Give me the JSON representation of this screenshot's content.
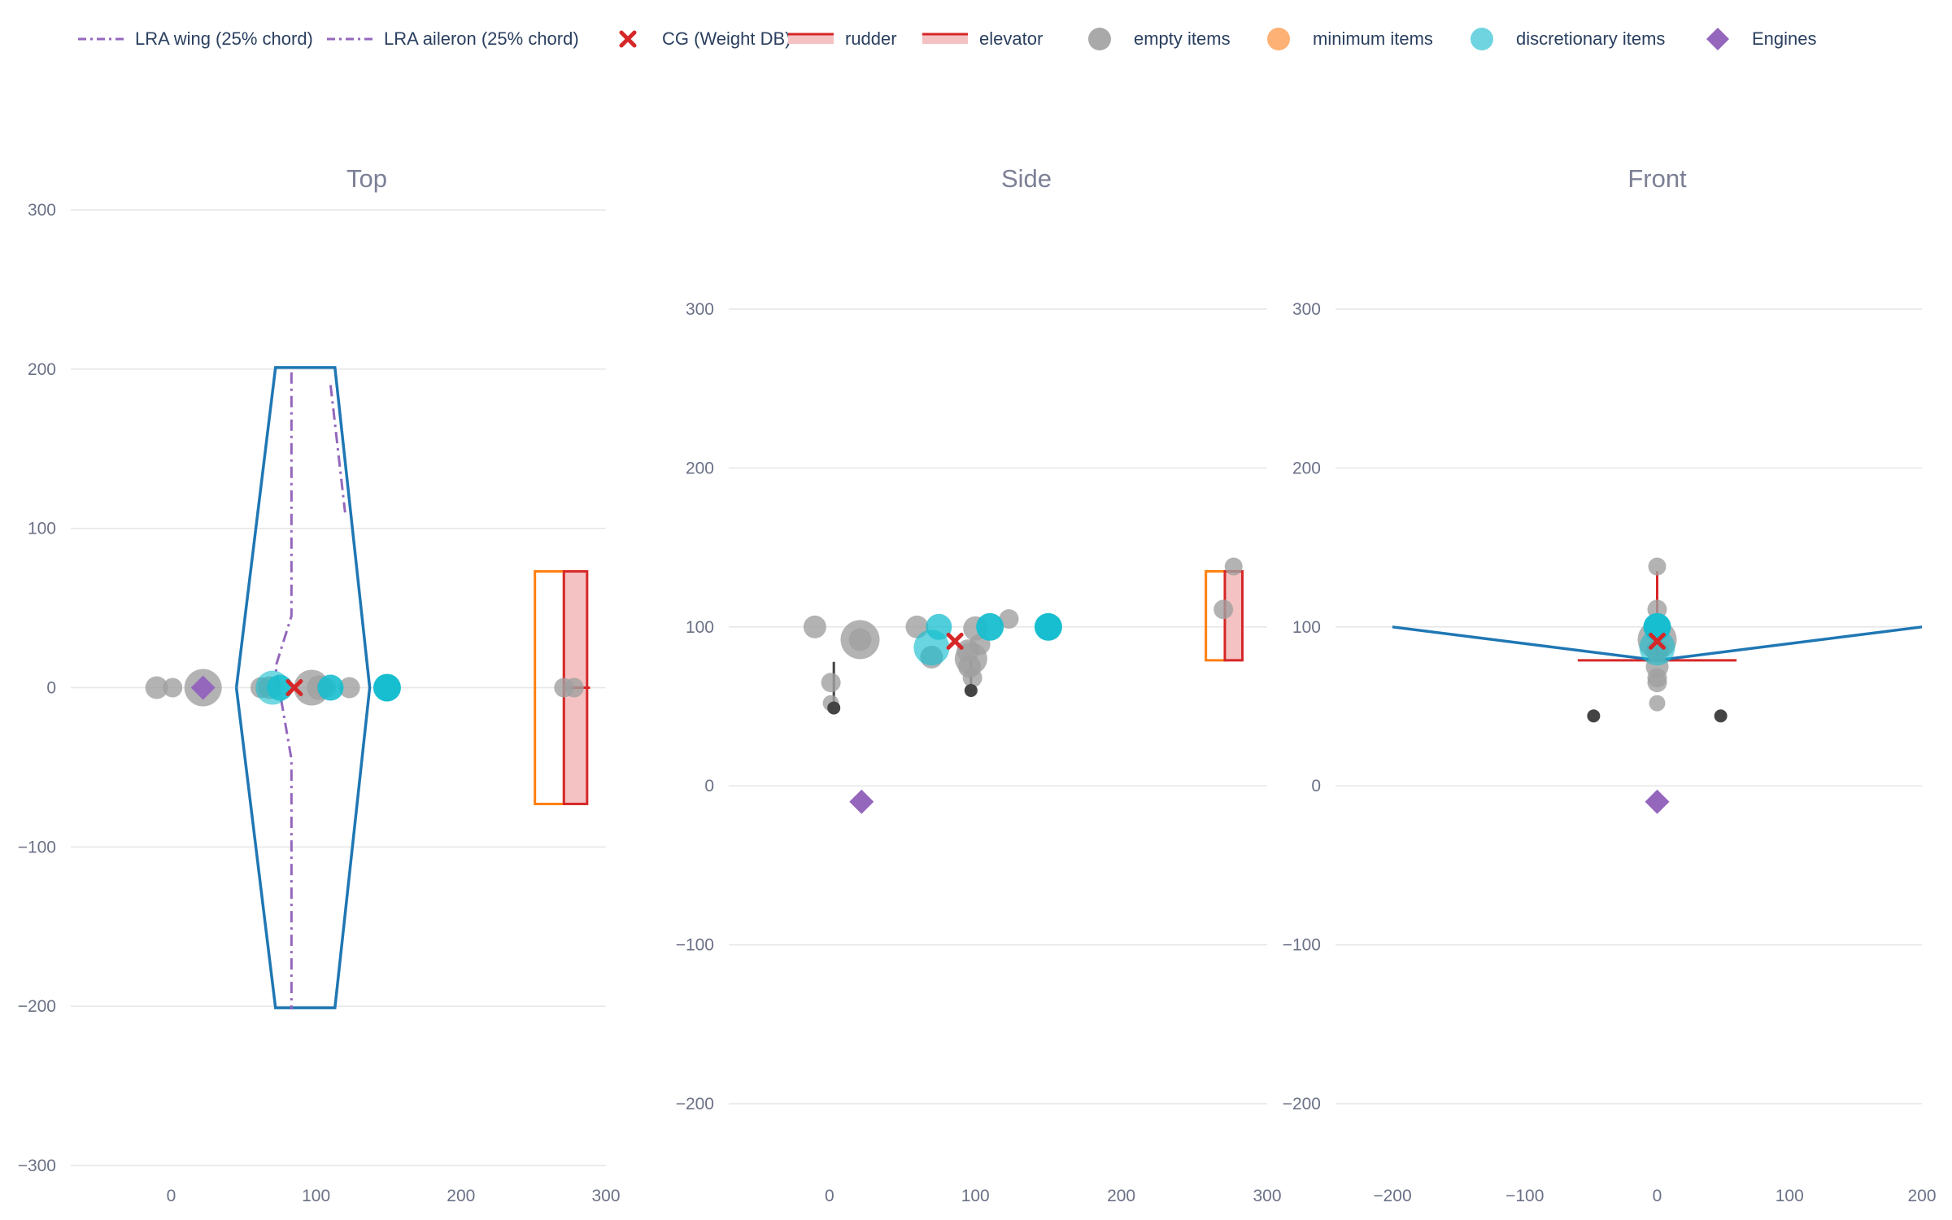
{
  "legend": [
    {
      "label": "LRA wing (25% chord)",
      "kind": "dashdot",
      "color": "#9467bd"
    },
    {
      "label": "LRA aileron (25% chord)",
      "kind": "dashdot",
      "color": "#9467bd"
    },
    {
      "label": "CG (Weight DB)",
      "kind": "x",
      "color": "#d62728"
    },
    {
      "label": "rudder",
      "kind": "band",
      "color": "#d62728"
    },
    {
      "label": "elevator",
      "kind": "band",
      "color": "#d62728"
    },
    {
      "label": "empty items",
      "kind": "dot",
      "color": "#a9a9a9"
    },
    {
      "label": "minimum items",
      "kind": "dot",
      "color": "#fdb174"
    },
    {
      "label": "discretionary items",
      "kind": "dot",
      "color": "#6fd4e0"
    },
    {
      "label": "Engines",
      "kind": "diamond",
      "color": "#9467bd"
    }
  ],
  "colors": {
    "outline": "#1f77b4",
    "lra": "#9467bd",
    "cg": "#d62728",
    "surface": "#d62728",
    "surface_fill": "#f4c2c2",
    "minimum_outline": "#ff7f0e",
    "empty": "#a0a0a0",
    "empty_dark": "#444444",
    "discretionary": "#17becf",
    "engine": "#9467bd",
    "grid": "#e6e6e6"
  },
  "chart_data": [
    {
      "type": "scatter",
      "title": "Top",
      "xlim": [
        -30,
        300
      ],
      "ylim": [
        -300,
        300
      ],
      "xticks": [
        0,
        100,
        200,
        300
      ],
      "yticks": [
        -300,
        -200,
        -100,
        0,
        100,
        200,
        300
      ],
      "fuselage_outline": [
        [
          45,
          0
        ],
        [
          72,
          201
        ],
        [
          113,
          201
        ],
        [
          137,
          0
        ],
        [
          113,
          -201
        ],
        [
          72,
          -201
        ],
        [
          45,
          0
        ]
      ],
      "lra_wing": [
        [
          83,
          198
        ],
        [
          83,
          45
        ],
        [
          72,
          13
        ],
        [
          83,
          -45
        ],
        [
          83,
          -202
        ]
      ],
      "lra_aileron": [
        [
          110,
          190
        ],
        [
          120,
          110
        ]
      ],
      "rudder": {
        "x": [
          271,
          289
        ],
        "y": [
          0,
          0
        ]
      },
      "elevator": {
        "x": [
          271,
          287
        ],
        "y": [
          -73,
          73
        ]
      },
      "minimum_outline": {
        "x": [
          251,
          271
        ],
        "y": [
          -73,
          73
        ]
      },
      "cg": [
        {
          "x": 85,
          "y": 0
        }
      ],
      "engines": [
        {
          "x": 22,
          "y": 0
        }
      ],
      "empty_items": [
        {
          "x": -10,
          "y": 0,
          "s": 14
        },
        {
          "x": 1,
          "y": 0,
          "s": 12
        },
        {
          "x": 22,
          "y": 0,
          "s": 23
        },
        {
          "x": 62,
          "y": 0,
          "s": 13
        },
        {
          "x": 68,
          "y": 0,
          "s": 14
        },
        {
          "x": 97,
          "y": 0,
          "s": 22
        },
        {
          "x": 102,
          "y": 0,
          "s": 15
        },
        {
          "x": 107,
          "y": 0,
          "s": 12
        },
        {
          "x": 123,
          "y": 0,
          "s": 13
        },
        {
          "x": 271,
          "y": 0,
          "s": 12
        },
        {
          "x": 278,
          "y": 0,
          "s": 12
        }
      ],
      "minimum_items": [],
      "discretionary_items": [
        {
          "x": 70,
          "y": 0,
          "s": 21,
          "o": 0.6
        },
        {
          "x": 75,
          "y": 0,
          "s": 16,
          "o": 0.85
        },
        {
          "x": 110,
          "y": 0,
          "s": 16,
          "o": 0.9
        },
        {
          "x": 149,
          "y": 0,
          "s": 17,
          "o": 1
        }
      ]
    },
    {
      "type": "scatter",
      "title": "Side",
      "xlim": [
        -30,
        300
      ],
      "ylim": [
        -200,
        300
      ],
      "xticks": [
        0,
        100,
        200,
        300
      ],
      "yticks": [
        -200,
        -100,
        0,
        100,
        200,
        300
      ],
      "rudder": {
        "x": [
          271,
          283
        ],
        "y": [
          79,
          135
        ]
      },
      "minimum_outline": {
        "x": [
          258,
          271
        ],
        "y": [
          79,
          135
        ]
      },
      "cg": [
        {
          "x": 86,
          "y": 91
        }
      ],
      "engines": [
        {
          "x": 22,
          "y": -10
        }
      ],
      "stems": [
        {
          "x": 3,
          "y1": 49,
          "y2": 78
        },
        {
          "x": 97,
          "y1": 59,
          "y2": 79
        }
      ],
      "empty_items": [
        {
          "x": -10,
          "y": 100,
          "s": 14
        },
        {
          "x": 1,
          "y": 65,
          "s": 12
        },
        {
          "x": 1,
          "y": 52,
          "s": 10
        },
        {
          "x": 21,
          "y": 92,
          "s": 14
        },
        {
          "x": 21,
          "y": 92,
          "s": 24
        },
        {
          "x": 60,
          "y": 100,
          "s": 14
        },
        {
          "x": 70,
          "y": 81,
          "s": 14
        },
        {
          "x": 95,
          "y": 85,
          "s": 14
        },
        {
          "x": 96,
          "y": 75,
          "s": 14
        },
        {
          "x": 97,
          "y": 80,
          "s": 20
        },
        {
          "x": 98,
          "y": 68,
          "s": 12
        },
        {
          "x": 100,
          "y": 99,
          "s": 15
        },
        {
          "x": 103,
          "y": 89,
          "s": 13
        },
        {
          "x": 123,
          "y": 105,
          "s": 12
        },
        {
          "x": 270,
          "y": 111,
          "s": 12
        },
        {
          "x": 277,
          "y": 138,
          "s": 11
        }
      ],
      "empty_items_dark": [
        {
          "x": 3,
          "y": 49,
          "s": 8
        },
        {
          "x": 97,
          "y": 60,
          "s": 8
        }
      ],
      "minimum_items": [],
      "discretionary_items": [
        {
          "x": 70,
          "y": 87,
          "s": 22,
          "o": 0.65
        },
        {
          "x": 75,
          "y": 100,
          "s": 16,
          "o": 0.75
        },
        {
          "x": 110,
          "y": 100,
          "s": 17,
          "o": 0.95
        },
        {
          "x": 150,
          "y": 100,
          "s": 17,
          "o": 1
        }
      ]
    },
    {
      "type": "scatter",
      "title": "Front",
      "xlim": [
        -200,
        200
      ],
      "ylim": [
        -200,
        300
      ],
      "xticks": [
        -200,
        -100,
        0,
        100,
        200
      ],
      "yticks": [
        -200,
        -100,
        0,
        100,
        200,
        300
      ],
      "fuselage_outline": [
        [
          -200,
          100
        ],
        [
          0,
          79
        ],
        [
          200,
          100
        ]
      ],
      "rudder": {
        "x": [
          0,
          0
        ],
        "y": [
          79,
          135
        ]
      },
      "elevator": {
        "x": [
          -60,
          60
        ],
        "y": [
          79,
          79
        ]
      },
      "cg": [
        {
          "x": 0,
          "y": 91
        }
      ],
      "engines": [
        {
          "x": 0,
          "y": -10
        }
      ],
      "empty_items": [
        {
          "x": 0,
          "y": 138,
          "s": 11
        },
        {
          "x": 0,
          "y": 111,
          "s": 12
        },
        {
          "x": 0,
          "y": 100,
          "s": 14
        },
        {
          "x": 0,
          "y": 92,
          "s": 24
        },
        {
          "x": 0,
          "y": 85,
          "s": 14
        },
        {
          "x": 0,
          "y": 75,
          "s": 14
        },
        {
          "x": 0,
          "y": 68,
          "s": 12
        },
        {
          "x": 0,
          "y": 65,
          "s": 12
        },
        {
          "x": 0,
          "y": 52,
          "s": 10
        }
      ],
      "empty_items_dark": [
        {
          "x": -48,
          "y": 44,
          "s": 8
        },
        {
          "x": 48,
          "y": 44,
          "s": 8
        }
      ],
      "minimum_items": [],
      "discretionary_items": [
        {
          "x": 0,
          "y": 87,
          "s": 22,
          "o": 0.6
        },
        {
          "x": 0,
          "y": 100,
          "s": 17,
          "o": 1
        }
      ]
    }
  ]
}
